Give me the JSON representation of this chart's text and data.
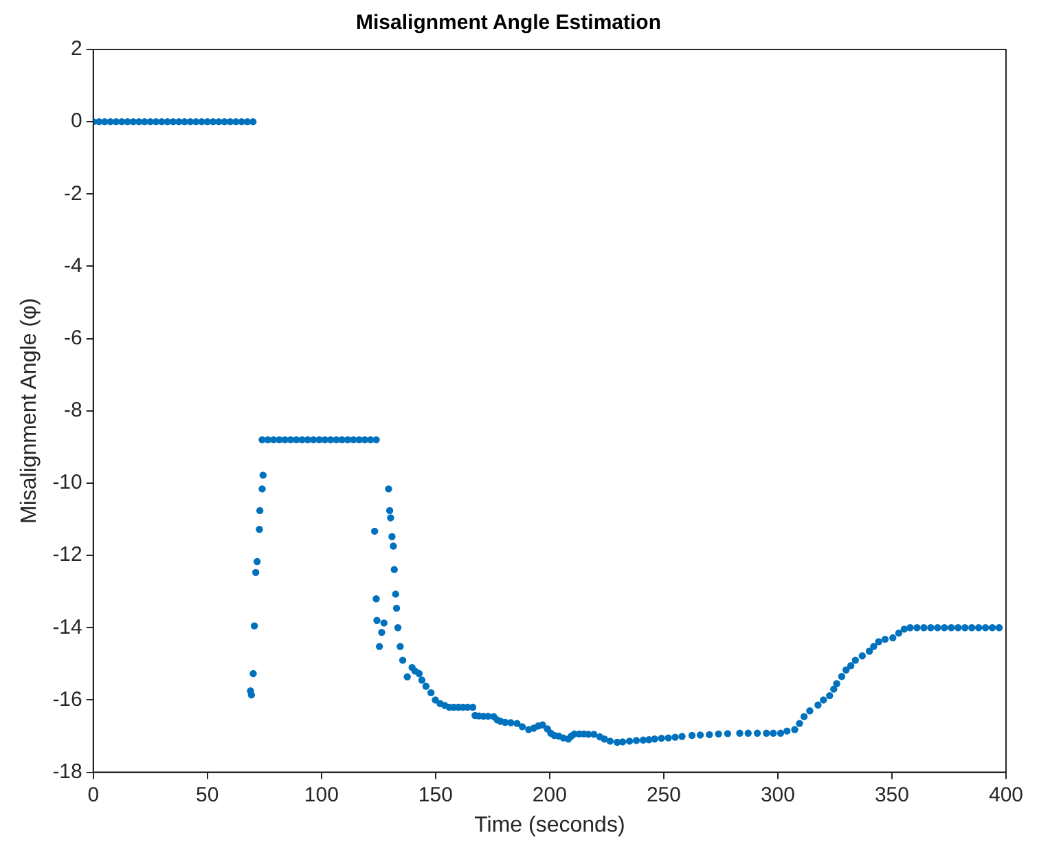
{
  "chart_data": {
    "type": "scatter",
    "title": "Misalignment Angle Estimation",
    "xlabel": "Time (seconds)",
    "ylabel": "Misalignment Angle (φ)",
    "xlim": [
      0,
      400
    ],
    "xticks": [
      0,
      50,
      100,
      150,
      200,
      250,
      300,
      350,
      400
    ],
    "ylim": [
      -18,
      2
    ],
    "yticks": [
      -18,
      -16,
      -14,
      -12,
      -10,
      -8,
      -6,
      -4,
      -2,
      0,
      2
    ],
    "grid": false,
    "marker": "circle",
    "series": [
      {
        "color": "#0072bd",
        "x": [
          0,
          2.5,
          5,
          7.5,
          10,
          12.5,
          15,
          17.5,
          20,
          22.5,
          25,
          27.5,
          30,
          32.5,
          35,
          37.5,
          40,
          42.5,
          45,
          47.5,
          50,
          52.5,
          55,
          57.5,
          60,
          62.5,
          65,
          67.5,
          70,
          68.9,
          69.3,
          70.1,
          70.6,
          71.2,
          71.8,
          72.8,
          73,
          74,
          74.4,
          74,
          76.5,
          79,
          81.5,
          84,
          86.5,
          89,
          91.5,
          94,
          96.5,
          99,
          101.5,
          104,
          106.5,
          109,
          111.5,
          114,
          116.5,
          119,
          121.5,
          124,
          123.3,
          124,
          124.3,
          125.4,
          126.4,
          127.4,
          129.4,
          129.9,
          130.3,
          130.9,
          131.5,
          131.9,
          132.5,
          132.9,
          133.5,
          134.5,
          135.6,
          137.6,
          139.7,
          141,
          142.8,
          144,
          145.8,
          148,
          149.9,
          152,
          154,
          156,
          158,
          160,
          162,
          164,
          166.3,
          167.3,
          169,
          171,
          173,
          175.5,
          177,
          178.5,
          180.5,
          183,
          185.7,
          188,
          190.8,
          193,
          195,
          196.9,
          199,
          200.5,
          202,
          204,
          206,
          208.2,
          209.5,
          210.8,
          213,
          215,
          217,
          219.4,
          222,
          224,
          226.5,
          229.6,
          232,
          235,
          238,
          241,
          243.5,
          246,
          249,
          252,
          255,
          258,
          262.4,
          266,
          270,
          274,
          278,
          283.3,
          287,
          291,
          295,
          298,
          301.2,
          304,
          307.4,
          309.5,
          311.5,
          314,
          317.6,
          320,
          322.7,
          324.5,
          325.8,
          328,
          329.9,
          332,
          334,
          337,
          340.1,
          342,
          344.2,
          347,
          350.4,
          353,
          355.4,
          358,
          361,
          364,
          367,
          370,
          373,
          376,
          379,
          382,
          385,
          388,
          391,
          394,
          397
        ],
        "values": [
          0,
          0,
          0,
          0,
          0,
          0,
          0,
          0,
          0,
          0,
          0,
          0,
          0,
          0,
          0,
          0,
          0,
          0,
          0,
          0,
          0,
          0,
          0,
          0,
          0,
          0,
          0,
          0,
          0,
          -15.75,
          -15.86,
          -15.27,
          -13.95,
          -12.47,
          -12.17,
          -11.28,
          -10.76,
          -10.16,
          -9.78,
          -8.8,
          -8.8,
          -8.8,
          -8.8,
          -8.8,
          -8.8,
          -8.8,
          -8.8,
          -8.8,
          -8.8,
          -8.8,
          -8.8,
          -8.8,
          -8.8,
          -8.8,
          -8.8,
          -8.8,
          -8.8,
          -8.8,
          -8.8,
          -8.8,
          -11.33,
          -13.2,
          -13.8,
          -14.52,
          -14.13,
          -13.87,
          -10.16,
          -10.76,
          -10.96,
          -11.48,
          -11.74,
          -12.39,
          -13.07,
          -13.46,
          -14,
          -14.52,
          -14.9,
          -15.36,
          -15.1,
          -15.2,
          -15.27,
          -15.45,
          -15.62,
          -15.8,
          -16,
          -16.1,
          -16.15,
          -16.2,
          -16.2,
          -16.2,
          -16.2,
          -16.2,
          -16.2,
          -16.43,
          -16.44,
          -16.45,
          -16.45,
          -16.46,
          -16.55,
          -16.59,
          -16.62,
          -16.63,
          -16.65,
          -16.74,
          -16.82,
          -16.78,
          -16.72,
          -16.69,
          -16.8,
          -16.92,
          -16.98,
          -17,
          -17.05,
          -17.08,
          -17,
          -16.94,
          -16.94,
          -16.94,
          -16.95,
          -16.95,
          -17.02,
          -17.08,
          -17.14,
          -17.17,
          -17.16,
          -17.14,
          -17.12,
          -17.11,
          -17.1,
          -17.08,
          -17.06,
          -17.05,
          -17.03,
          -17.01,
          -16.98,
          -16.97,
          -16.96,
          -16.94,
          -16.93,
          -16.92,
          -16.92,
          -16.92,
          -16.92,
          -16.92,
          -16.92,
          -16.86,
          -16.82,
          -16.65,
          -16.46,
          -16.3,
          -16.14,
          -16,
          -15.88,
          -15.7,
          -15.55,
          -15.35,
          -15.17,
          -15.05,
          -14.9,
          -14.78,
          -14.65,
          -14.52,
          -14.39,
          -14.32,
          -14.28,
          -14.15,
          -14.04,
          -14,
          -14,
          -14,
          -14,
          -14,
          -14,
          -14,
          -14,
          -14,
          -14,
          -14,
          -14,
          -14,
          -14
        ]
      }
    ]
  }
}
